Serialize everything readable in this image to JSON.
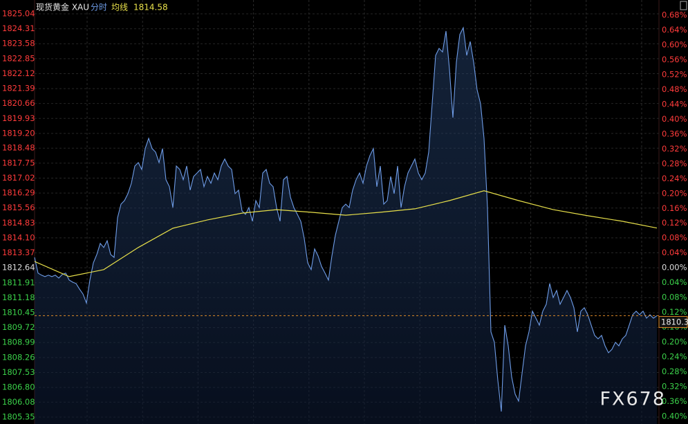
{
  "chart_data": {
    "type": "line",
    "title": "现货黄金 XAU",
    "watermark": "FX678",
    "series": [
      {
        "name": "分时",
        "color": "#6f9de8",
        "values": [
          1813.15,
          1812.38,
          1812.28,
          1812.21,
          1812.28,
          1812.21,
          1812.28,
          1812.14,
          1812.31,
          1812.38,
          1812.04,
          1811.94,
          1811.87,
          1811.6,
          1811.36,
          1810.92,
          1812.04,
          1812.88,
          1813.29,
          1813.83,
          1813.63,
          1813.96,
          1813.29,
          1813.15,
          1815.08,
          1815.75,
          1815.92,
          1816.26,
          1816.77,
          1817.61,
          1817.78,
          1817.44,
          1818.46,
          1818.96,
          1818.46,
          1818.29,
          1817.78,
          1818.46,
          1816.94,
          1816.6,
          1815.58,
          1817.61,
          1817.44,
          1816.94,
          1817.61,
          1816.43,
          1817.1,
          1817.27,
          1817.44,
          1816.6,
          1817.1,
          1816.77,
          1817.27,
          1816.94,
          1817.61,
          1817.95,
          1817.61,
          1817.44,
          1816.26,
          1816.43,
          1815.42,
          1815.25,
          1815.58,
          1814.91,
          1815.92,
          1815.58,
          1817.27,
          1817.44,
          1816.77,
          1816.6,
          1815.58,
          1814.91,
          1816.94,
          1817.1,
          1816.09,
          1815.58,
          1815.25,
          1814.91,
          1814.07,
          1812.88,
          1812.55,
          1813.56,
          1813.22,
          1812.71,
          1812.38,
          1812.04,
          1813.22,
          1814.23,
          1814.91,
          1815.58,
          1815.75,
          1815.58,
          1816.43,
          1816.94,
          1817.27,
          1816.77,
          1817.61,
          1818.12,
          1818.46,
          1816.6,
          1817.61,
          1815.75,
          1815.92,
          1817.1,
          1816.26,
          1817.61,
          1815.58,
          1816.6,
          1817.27,
          1817.61,
          1817.95,
          1817.27,
          1816.94,
          1817.27,
          1818.29,
          1820.65,
          1823.01,
          1823.35,
          1823.18,
          1824.2,
          1822.34,
          1819.97,
          1822.68,
          1824.03,
          1824.36,
          1823.01,
          1823.69,
          1822.68,
          1821.33,
          1820.65,
          1818.96,
          1815.58,
          1809.51,
          1809.0,
          1807.14,
          1805.62,
          1809.84,
          1808.83,
          1807.31,
          1806.47,
          1806.13,
          1807.48,
          1808.83,
          1809.51,
          1810.52,
          1810.18,
          1809.84,
          1810.52,
          1810.86,
          1811.87,
          1811.19,
          1811.53,
          1810.86,
          1811.19,
          1811.53,
          1811.19,
          1810.69,
          1809.51,
          1810.52,
          1810.69,
          1810.35,
          1809.84,
          1809.34,
          1809.17,
          1809.34,
          1808.83,
          1808.49,
          1808.66,
          1809.0,
          1808.83,
          1809.17,
          1809.34,
          1809.84,
          1810.35,
          1810.52,
          1810.35,
          1810.52,
          1810.18,
          1810.35,
          1810.18,
          1810.3
        ]
      },
      {
        "name": "均线",
        "color": "#e8e04a",
        "values": [
          1812.95,
          1812.21,
          1812.55,
          1813.63,
          1814.57,
          1814.98,
          1815.31,
          1815.48,
          1815.35,
          1815.21,
          1815.35,
          1815.52,
          1815.92,
          1816.4,
          1815.92,
          1815.48,
          1815.18,
          1814.91,
          1814.58
        ]
      }
    ],
    "ylim": [
      1805.35,
      1825.04
    ],
    "yticks": [
      1825.04,
      1824.31,
      1823.58,
      1822.85,
      1822.12,
      1821.39,
      1820.66,
      1819.93,
      {
        "value": 1819.2,
        "label": "1819.20"
      },
      1818.48,
      1817.75,
      1817.02,
      1816.29,
      1815.56,
      1814.83,
      {
        "value": 1814.1,
        "label": "1814.10"
      },
      1813.37,
      1812.64,
      1811.91,
      1811.18,
      1810.45,
      1809.72,
      1808.99,
      1808.26,
      1807.53,
      {
        "value": 1806.8,
        "label": "1806.80"
      },
      1806.08,
      1805.35
    ],
    "y2lim": [
      -0.4022,
      0.6841
    ],
    "y2ticks": [
      {
        "value": 0.68,
        "label": "0.68%"
      },
      {
        "value": 0.64,
        "label": "0.64%"
      },
      {
        "value": 0.6,
        "label": "0.60%"
      },
      {
        "value": 0.56,
        "label": "0.56%"
      },
      {
        "value": 0.52,
        "label": "0.52%"
      },
      {
        "value": 0.48,
        "label": "0.48%"
      },
      {
        "value": 0.44,
        "label": "0.44%"
      },
      {
        "value": 0.4,
        "label": "0.40%"
      },
      {
        "value": 0.36,
        "label": "0.36%"
      },
      {
        "value": 0.32,
        "label": "0.32%"
      },
      {
        "value": 0.28,
        "label": "0.28%"
      },
      {
        "value": 0.24,
        "label": "0.24%"
      },
      {
        "value": 0.2,
        "label": "0.20%"
      },
      {
        "value": 0.16,
        "label": "0.16%"
      },
      {
        "value": 0.12,
        "label": "0.12%"
      },
      {
        "value": 0.08,
        "label": "0.08%"
      },
      {
        "value": 0.04,
        "label": "0.04%"
      },
      {
        "value": 0,
        "label": "0.00%"
      },
      {
        "value": -0.04,
        "label": "0.04%"
      },
      {
        "value": -0.08,
        "label": "0.08%"
      },
      {
        "value": -0.12,
        "label": "0.12%"
      },
      {
        "value": -0.16,
        "label": "0.16%"
      },
      {
        "value": -0.2,
        "label": "0.20%"
      },
      {
        "value": -0.24,
        "label": "0.24%"
      },
      {
        "value": -0.28,
        "label": "0.28%"
      },
      {
        "value": -0.32,
        "label": "0.32%"
      },
      {
        "value": -0.36,
        "label": "0.36%"
      },
      {
        "value": -0.4,
        "label": "0.40%"
      }
    ],
    "grid": true
  }
}
